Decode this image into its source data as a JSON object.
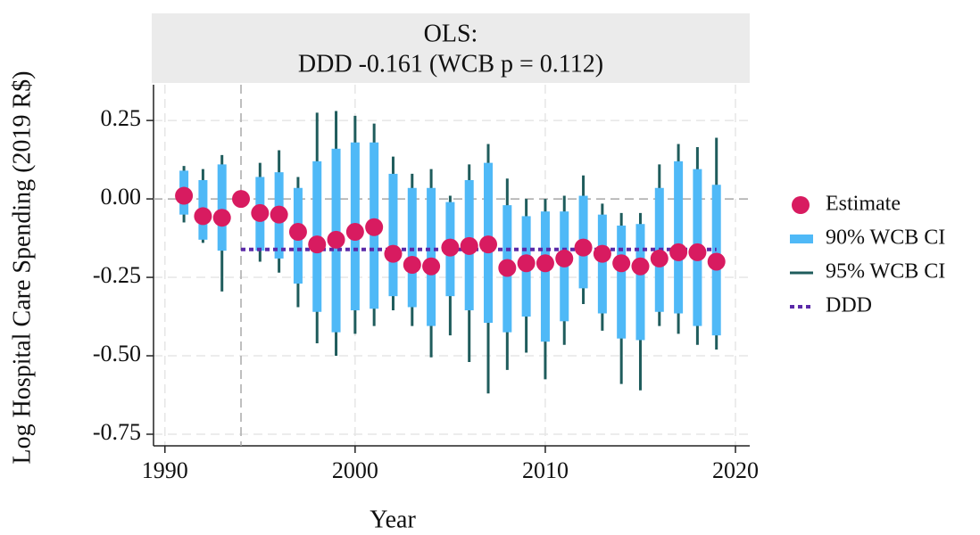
{
  "chart_data": {
    "type": "coefplot",
    "title": "OLS:",
    "subtitle": "DDD -0.161 (WCB p = 0.112)",
    "x_label": "Year",
    "y_label": "Log Hospital Care Spending (2019 R$)",
    "x": [
      1991,
      1992,
      1993,
      1994,
      1995,
      1996,
      1997,
      1998,
      1999,
      2000,
      2001,
      2002,
      2003,
      2004,
      2005,
      2006,
      2007,
      2008,
      2009,
      2010,
      2011,
      2012,
      2013,
      2014,
      2015,
      2016,
      2017,
      2018,
      2019
    ],
    "series": [
      {
        "name": "Estimate",
        "color": "#d81b60",
        "values": [
          0.01,
          -0.055,
          -0.06,
          0,
          -0.045,
          -0.05,
          -0.105,
          -0.145,
          -0.13,
          -0.105,
          -0.09,
          -0.175,
          -0.21,
          -0.215,
          -0.155,
          -0.15,
          -0.145,
          -0.22,
          -0.205,
          -0.205,
          -0.19,
          -0.155,
          -0.175,
          -0.205,
          -0.215,
          -0.19,
          -0.17,
          -0.17,
          -0.2
        ]
      },
      {
        "name": "90% WCB CI",
        "color": "#4fb9f7",
        "low": [
          -0.05,
          -0.13,
          -0.165,
          null,
          -0.165,
          -0.19,
          -0.27,
          -0.36,
          -0.425,
          -0.355,
          -0.35,
          -0.31,
          -0.345,
          -0.405,
          -0.31,
          -0.355,
          -0.395,
          -0.425,
          -0.375,
          -0.455,
          -0.39,
          -0.285,
          -0.365,
          -0.445,
          -0.45,
          -0.36,
          -0.365,
          -0.405,
          -0.435
        ],
        "high": [
          0.09,
          0.06,
          0.11,
          null,
          0.07,
          0.085,
          0.035,
          0.12,
          0.16,
          0.18,
          0.18,
          0.08,
          0.035,
          0.035,
          -0.01,
          0.06,
          0.115,
          -0.02,
          -0.055,
          -0.04,
          -0.04,
          0.01,
          -0.05,
          -0.085,
          -0.08,
          0.035,
          0.12,
          0.095,
          0.045
        ]
      },
      {
        "name": "95% WCB CI",
        "color": "#1f5c5c",
        "low": [
          -0.075,
          -0.14,
          -0.295,
          null,
          -0.2,
          -0.235,
          -0.345,
          -0.46,
          -0.5,
          -0.43,
          -0.405,
          -0.355,
          -0.405,
          -0.505,
          -0.435,
          -0.52,
          -0.62,
          -0.545,
          -0.49,
          -0.575,
          -0.465,
          -0.335,
          -0.42,
          -0.59,
          -0.61,
          -0.405,
          -0.43,
          -0.465,
          -0.48
        ],
        "high": [
          0.105,
          0.095,
          0.14,
          null,
          0.115,
          0.155,
          0.07,
          0.275,
          0.28,
          0.265,
          0.24,
          0.135,
          0.08,
          0.095,
          0.01,
          0.11,
          0.175,
          0.065,
          0,
          0,
          0.01,
          0.075,
          -0.015,
          -0.045,
          -0.045,
          0.11,
          0.175,
          0.165,
          0.195
        ]
      },
      {
        "name": "DDD",
        "color": "#5b2aa8",
        "value": -0.161,
        "x": [
          1994,
          2019
        ]
      }
    ],
    "vline_x": 1994,
    "hline_y": 0,
    "xlim": [
      1989.4,
      2020.75
    ],
    "ylim": [
      -0.787,
      0.364
    ],
    "xticks": [
      1990,
      2000,
      2010,
      2020
    ],
    "yticks": [
      0.25,
      {
        "value": 0,
        "label": "0.00"
      },
      -0.25,
      {
        "value": -0.5,
        "label": "-0.50"
      },
      -0.75
    ],
    "grid": true,
    "legend": "right"
  }
}
